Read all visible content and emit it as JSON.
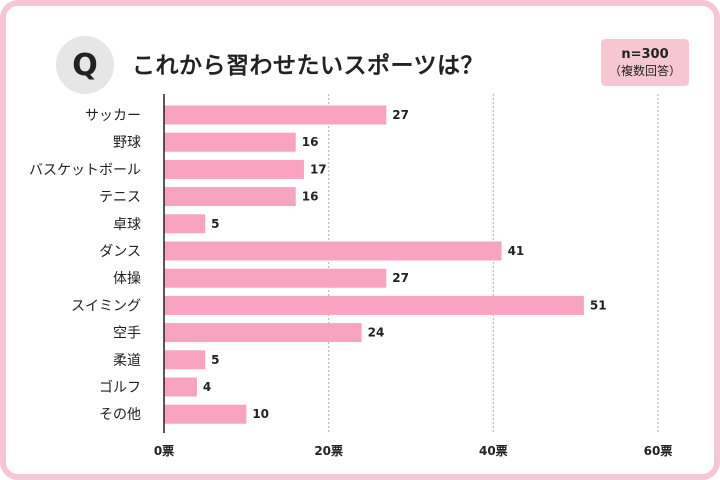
{
  "header": {
    "q_mark": "Q",
    "title": "これから習わせたいスポーツは？",
    "badge_n": "n=300",
    "badge_note": "（複数回答）"
  },
  "colors": {
    "bar": "#f8a3bf",
    "frame": "#f7c6d3",
    "badge_bg": "#f7c6d3",
    "grid": "#b0b0b0",
    "axis": "#222222"
  },
  "chart_data": {
    "type": "bar",
    "orientation": "horizontal",
    "title": "これから習わせたいスポーツは？",
    "categories": [
      "サッカー",
      "野球",
      "バスケットボール",
      "テニス",
      "卓球",
      "ダンス",
      "体操",
      "スイミング",
      "空手",
      "柔道",
      "ゴルフ",
      "その他"
    ],
    "values": [
      27,
      16,
      17,
      16,
      5,
      41,
      27,
      51,
      24,
      5,
      4,
      10
    ],
    "xlim": [
      0,
      60
    ],
    "xticks": [
      0,
      20,
      40,
      60
    ],
    "tick_suffix": "票",
    "grid": true,
    "xlabel": "",
    "ylabel": ""
  }
}
